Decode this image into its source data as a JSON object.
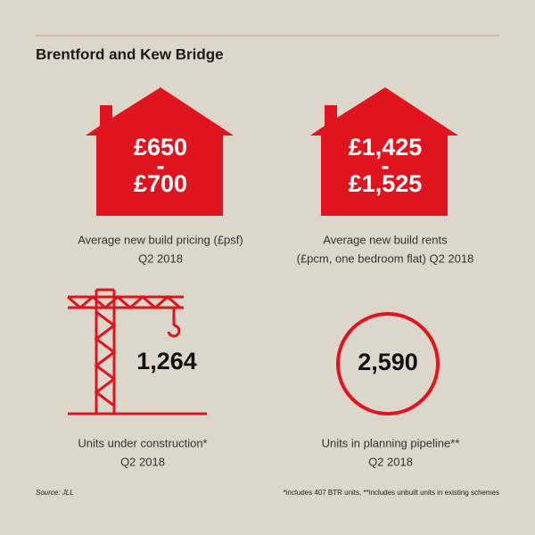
{
  "header": {
    "title": "Brentford and Kew Bridge"
  },
  "panels": [
    {
      "value_lines": [
        "£650",
        "-",
        "£700"
      ],
      "caption_lines": [
        "Average new build pricing (£psf)",
        "Q2 2018"
      ]
    },
    {
      "value_lines": [
        "£1,425",
        "-",
        "£1,525"
      ],
      "caption_lines": [
        "Average new build rents",
        "(£pcm, one bedroom flat) Q2 2018"
      ]
    },
    {
      "value_lines": [
        "1,264"
      ],
      "caption_lines": [
        "Units under construction*",
        "Q2 2018"
      ]
    },
    {
      "value_lines": [
        "2,590"
      ],
      "caption_lines": [
        "Units in planning pipeline**",
        "Q2 2018"
      ]
    }
  ],
  "footer": {
    "source": "Source: JLL",
    "note": "*includes 407 BTR units, **includes unbuilt units in existing schemes"
  }
}
